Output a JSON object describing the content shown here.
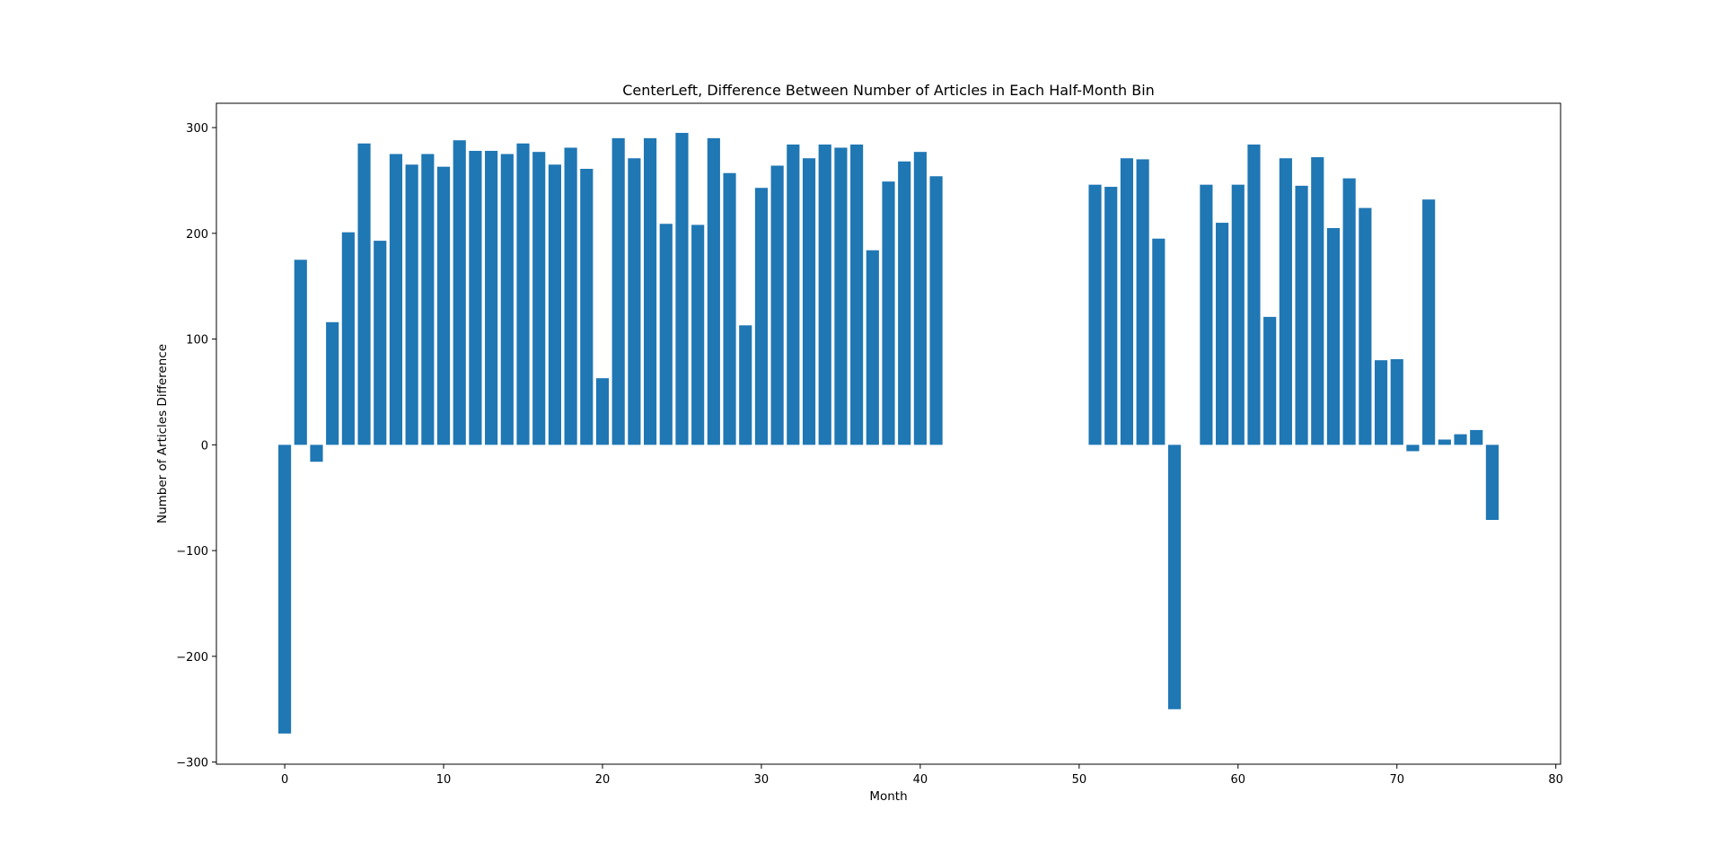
{
  "chart_data": {
    "type": "bar",
    "title": "CenterLeft, Difference Between Number of Articles in Each Half-Month Bin",
    "xlabel": "Month",
    "ylabel": "Number of Articles Difference",
    "xlim": [
      -4.3,
      80.3
    ],
    "ylim": [
      -302,
      323
    ],
    "xticks": [
      0,
      10,
      20,
      30,
      40,
      50,
      60,
      70,
      80
    ],
    "yticks": [
      -300,
      -200,
      -100,
      0,
      100,
      200,
      300
    ],
    "grid": false,
    "legend": "none",
    "bar_width": 0.8,
    "color": "#1f77b4",
    "x": [
      0,
      1,
      2,
      3,
      4,
      5,
      6,
      7,
      8,
      9,
      10,
      11,
      12,
      13,
      14,
      15,
      16,
      17,
      18,
      19,
      20,
      21,
      22,
      23,
      24,
      25,
      26,
      27,
      28,
      29,
      30,
      31,
      32,
      33,
      34,
      35,
      36,
      37,
      38,
      39,
      40,
      41,
      51,
      52,
      53,
      54,
      55,
      56,
      58,
      59,
      60,
      61,
      62,
      63,
      64,
      65,
      66,
      67,
      68,
      69,
      70,
      71,
      72,
      73,
      74,
      75,
      76
    ],
    "values": [
      -273,
      175,
      -16,
      116,
      201,
      285,
      193,
      275,
      265,
      275,
      263,
      288,
      278,
      278,
      275,
      285,
      277,
      265,
      281,
      261,
      63,
      290,
      271,
      290,
      209,
      295,
      208,
      290,
      257,
      113,
      243,
      264,
      284,
      271,
      284,
      281,
      284,
      184,
      249,
      268,
      277,
      254,
      246,
      244,
      271,
      270,
      195,
      -250,
      246,
      210,
      246,
      284,
      121,
      271,
      245,
      272,
      205,
      252,
      224,
      80,
      81,
      -6,
      232,
      5,
      10,
      14,
      -71
    ]
  }
}
